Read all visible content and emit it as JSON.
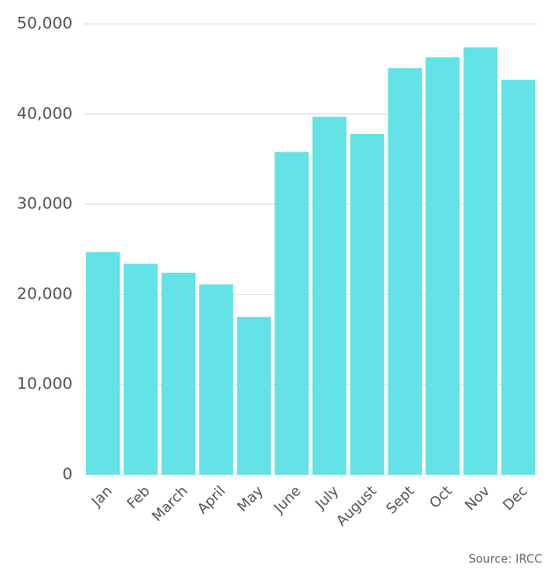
{
  "chart_data": {
    "type": "bar",
    "categories": [
      "Jan",
      "Feb",
      "March",
      "April",
      "May",
      "June",
      "July",
      "August",
      "Sept",
      "Oct",
      "Nov",
      "Dec"
    ],
    "values": [
      24700,
      23400,
      22400,
      21100,
      17500,
      35800,
      39700,
      37800,
      45100,
      46300,
      47400,
      43800
    ],
    "color": "#63e3e5",
    "ylim": [
      0,
      50000
    ],
    "yticks": [
      0,
      {
        "value": 10000,
        "label": "10,000"
      },
      {
        "value": 20000,
        "label": "20,000"
      },
      {
        "value": 30000,
        "label": "30,000"
      },
      {
        "value": 40000,
        "label": "40,000"
      },
      {
        "value": 50000,
        "label": "50,000"
      }
    ],
    "grid": true,
    "source": "Source: IRCC"
  }
}
